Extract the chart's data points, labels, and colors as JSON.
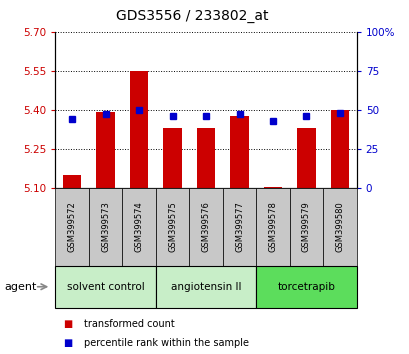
{
  "title": "GDS3556 / 233802_at",
  "samples": [
    "GSM399572",
    "GSM399573",
    "GSM399574",
    "GSM399575",
    "GSM399576",
    "GSM399577",
    "GSM399578",
    "GSM399579",
    "GSM399580"
  ],
  "transformed_count": [
    5.15,
    5.39,
    5.548,
    5.33,
    5.33,
    5.375,
    5.103,
    5.33,
    5.4
  ],
  "percentile_rank": [
    44,
    47,
    50,
    46,
    46,
    47,
    43,
    46,
    48
  ],
  "ylim_left": [
    5.1,
    5.7
  ],
  "yticks_left": [
    5.1,
    5.25,
    5.4,
    5.55,
    5.7
  ],
  "ylim_right": [
    0,
    100
  ],
  "yticks_right": [
    0,
    25,
    50,
    75,
    100
  ],
  "groups": [
    {
      "label": "solvent control",
      "indices": [
        0,
        1,
        2
      ],
      "color": "#c8eec8"
    },
    {
      "label": "angiotensin II",
      "indices": [
        3,
        4,
        5
      ],
      "color": "#c8eec8"
    },
    {
      "label": "torcetrapib",
      "indices": [
        6,
        7,
        8
      ],
      "color": "#5cdd5c"
    }
  ],
  "bar_color": "#cc0000",
  "dot_color": "#0000cc",
  "bar_bottom": 5.1,
  "tick_label_color_left": "#cc0000",
  "tick_label_color_right": "#0000cc",
  "bg_xticklabels": "#c8c8c8",
  "legend_items": [
    {
      "color": "#cc0000",
      "label": "transformed count"
    },
    {
      "color": "#0000cc",
      "label": "percentile rank within the sample"
    }
  ],
  "agent_label": "agent",
  "title_fontsize": 10,
  "tick_fontsize": 7.5,
  "sample_fontsize": 6,
  "group_fontsize": 7.5,
  "legend_fontsize": 7
}
